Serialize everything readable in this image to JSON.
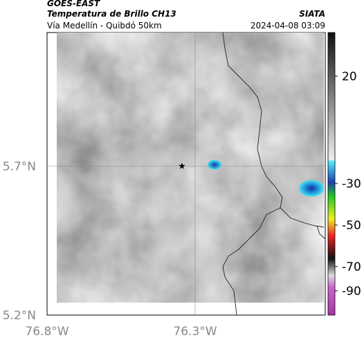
{
  "header": {
    "title": "GOES-EAST",
    "subtitle": "Temperatura de Brillo CH13",
    "route": "Vía Medellín - Quibdó 50km",
    "source": "SIATA",
    "timestamp": "2024-04-08 03:09"
  },
  "map": {
    "x_labels": [
      "76.8°W",
      "76.3°W"
    ],
    "y_labels": [
      "5.7°N",
      "5.2°N"
    ]
  },
  "colorbar": {
    "ticks": [
      20,
      -30,
      -50,
      -70,
      -90
    ]
  }
}
